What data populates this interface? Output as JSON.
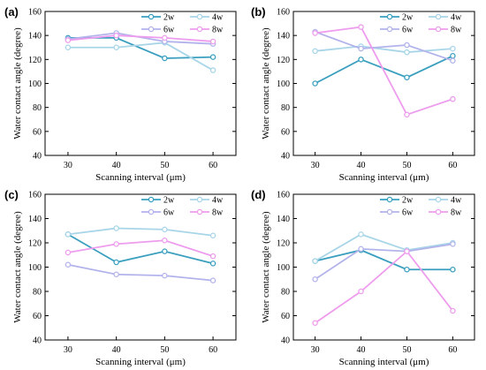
{
  "chart_data": [
    {
      "type": "line",
      "panel_label": "(a)",
      "xlabel": "Scanning interval (μm)",
      "ylabel": "Water contact angle (degree)",
      "categories": [
        "30",
        "40",
        "50",
        "60"
      ],
      "yticks": [
        "40",
        "60",
        "80",
        "100",
        "120",
        "140",
        "160"
      ],
      "ylim": [
        40,
        160
      ],
      "series": [
        {
          "name": "2w",
          "values": [
            138,
            138,
            121,
            122
          ]
        },
        {
          "name": "4w",
          "values": [
            130,
            130,
            134,
            111
          ]
        },
        {
          "name": "6w",
          "values": [
            137,
            142,
            135,
            133
          ]
        },
        {
          "name": "8w",
          "values": [
            136,
            140,
            138,
            135
          ]
        }
      ]
    },
    {
      "type": "line",
      "panel_label": "(b)",
      "xlabel": "Scanning interval (μm)",
      "ylabel": "Water contact angle (degree)",
      "categories": [
        "30",
        "40",
        "50",
        "60"
      ],
      "yticks": [
        "40",
        "60",
        "80",
        "100",
        "120",
        "140",
        "160"
      ],
      "ylim": [
        40,
        160
      ],
      "series": [
        {
          "name": "2w",
          "values": [
            100,
            120,
            105,
            123
          ]
        },
        {
          "name": "4w",
          "values": [
            127,
            131,
            126,
            129
          ]
        },
        {
          "name": "6w",
          "values": [
            143,
            129,
            132,
            119
          ]
        },
        {
          "name": "8w",
          "values": [
            142,
            147,
            74,
            87
          ]
        }
      ]
    },
    {
      "type": "line",
      "panel_label": "(c)",
      "xlabel": "Scanning interval (μm)",
      "ylabel": "Water contact angle (degree)",
      "categories": [
        "30",
        "40",
        "50",
        "60"
      ],
      "yticks": [
        "40",
        "60",
        "80",
        "100",
        "120",
        "140",
        "160"
      ],
      "ylim": [
        40,
        160
      ],
      "series": [
        {
          "name": "2w",
          "values": [
            127,
            104,
            113,
            103
          ]
        },
        {
          "name": "4w",
          "values": [
            127,
            132,
            131,
            126
          ]
        },
        {
          "name": "6w",
          "values": [
            102,
            94,
            93,
            89
          ]
        },
        {
          "name": "8w",
          "values": [
            112,
            119,
            122,
            109
          ]
        }
      ]
    },
    {
      "type": "line",
      "panel_label": "(d)",
      "xlabel": "Scanning interval (μm)",
      "ylabel": "Water contact angle (degree)",
      "categories": [
        "30",
        "40",
        "50",
        "60"
      ],
      "yticks": [
        "40",
        "60",
        "80",
        "100",
        "120",
        "140",
        "160"
      ],
      "ylim": [
        40,
        160
      ],
      "series": [
        {
          "name": "2w",
          "values": [
            105,
            114,
            98,
            98
          ]
        },
        {
          "name": "4w",
          "values": [
            105,
            127,
            114,
            120
          ]
        },
        {
          "name": "6w",
          "values": [
            90,
            115,
            113,
            119
          ]
        },
        {
          "name": "8w",
          "values": [
            54,
            80,
            113,
            64
          ]
        }
      ]
    }
  ],
  "series_colors": {
    "2w": "#3a9fbf",
    "4w": "#a8d5e8",
    "6w": "#b3b3ec",
    "8w": "#ee9ced"
  }
}
